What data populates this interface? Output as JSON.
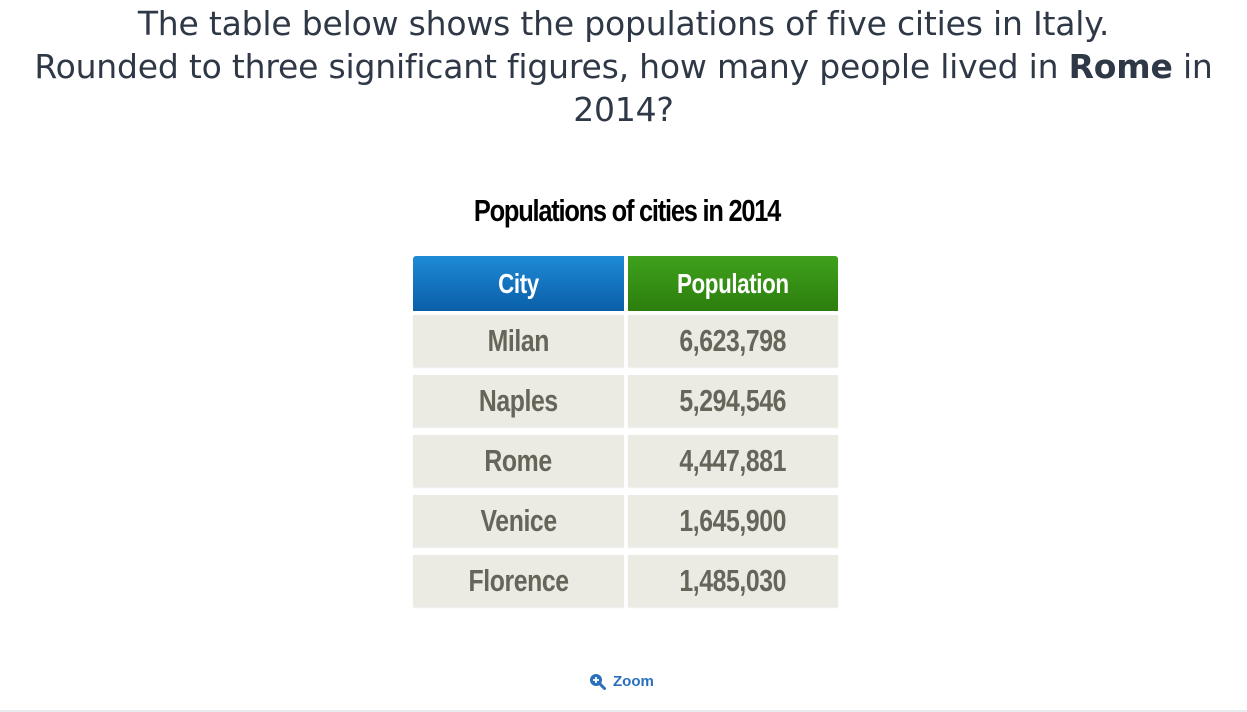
{
  "question": {
    "line1": "The table below shows the populations of five cities in Italy.",
    "line2_prefix": "Rounded to three significant figures, how many people lived in ",
    "line2_bold": "Rome",
    "line2_suffix": " in",
    "line3": "2014?"
  },
  "table": {
    "title": "Populations of cities in 2014",
    "headers": [
      "City",
      "Population"
    ],
    "rows": [
      {
        "city": "Milan",
        "population": "6,623,798"
      },
      {
        "city": "Naples",
        "population": "5,294,546"
      },
      {
        "city": "Rome",
        "population": "4,447,881"
      },
      {
        "city": "Venice",
        "population": "1,645,900"
      },
      {
        "city": "Florence",
        "population": "1,485,030"
      }
    ],
    "colors": {
      "city_header": "#1174c4",
      "population_header": "#36901a",
      "cell_background": "#ebebe4",
      "cell_text": "#65655a"
    }
  },
  "zoom": {
    "label": "Zoom",
    "icon": "zoom-in-icon"
  }
}
